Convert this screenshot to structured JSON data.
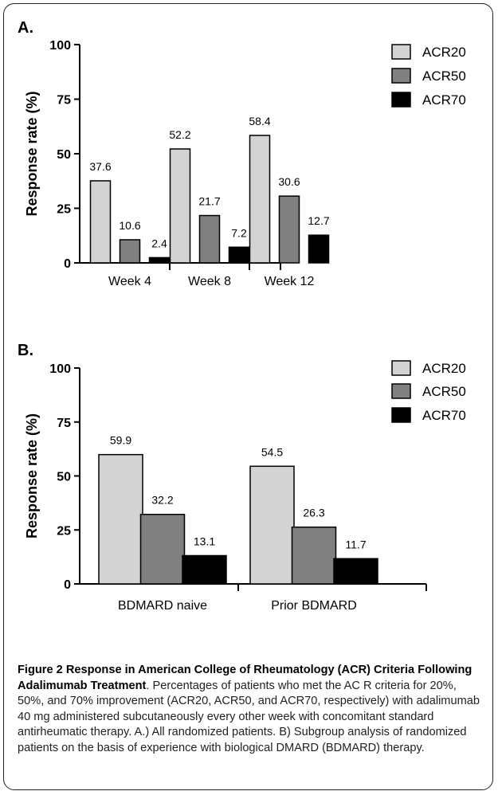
{
  "chart_data": [
    {
      "type": "bar",
      "panel_label": "A.",
      "ylabel": "Response rate (%)",
      "ylim": [
        0,
        100
      ],
      "yticks": [
        "0",
        "25",
        "50",
        "75",
        "100"
      ],
      "categories": [
        "Week 4",
        "Week 8",
        "Week 12"
      ],
      "series": [
        {
          "name": "ACR20",
          "color": "#d3d3d3",
          "values": [
            37.6,
            52.2,
            58.4
          ],
          "labels": [
            "37.6",
            "52.2",
            "58.4"
          ]
        },
        {
          "name": "ACR50",
          "color": "#808080",
          "values": [
            10.6,
            21.7,
            30.6
          ],
          "labels": [
            "10.6",
            "21.7",
            "30.6"
          ]
        },
        {
          "name": "ACR70",
          "color": "#000000",
          "values": [
            2.4,
            7.2,
            12.7
          ],
          "labels": [
            "2.4",
            "7.2",
            "12.7"
          ]
        }
      ],
      "legend_position": "top-right",
      "grid": false
    },
    {
      "type": "bar",
      "panel_label": "B.",
      "ylabel": "Response rate (%)",
      "ylim": [
        0,
        100
      ],
      "yticks": [
        "0",
        "25",
        "50",
        "75",
        "100"
      ],
      "categories": [
        "BDMARD naive",
        "Prior BDMARD"
      ],
      "series": [
        {
          "name": "ACR20",
          "color": "#d3d3d3",
          "values": [
            59.9,
            54.5
          ],
          "labels": [
            "59.9",
            "54.5"
          ]
        },
        {
          "name": "ACR50",
          "color": "#808080",
          "values": [
            32.2,
            26.3
          ],
          "labels": [
            "32.2",
            "26.3"
          ]
        },
        {
          "name": "ACR70",
          "color": "#000000",
          "values": [
            13.1,
            11.7
          ],
          "labels": [
            "13.1",
            "11.7"
          ]
        }
      ],
      "legend_position": "top-right",
      "grid": false
    }
  ],
  "caption": {
    "title": "Figure 2 Response in American College of Rheumatology (ACR) Criteria Following Adalimumab Treatment",
    "body": ". Percentages of patients who met the AC R criteria for 20%, 50%, and 70% improvement (ACR20, ACR50, and ACR70, respectively) with adalimumab 40 mg administered subcutaneously every other week with concomitant standard antirheumatic therapy. A.) All randomized patients. B) Subgroup analysis of randomized patients on the basis of experience with biological DMARD (BDMARD) therapy."
  }
}
